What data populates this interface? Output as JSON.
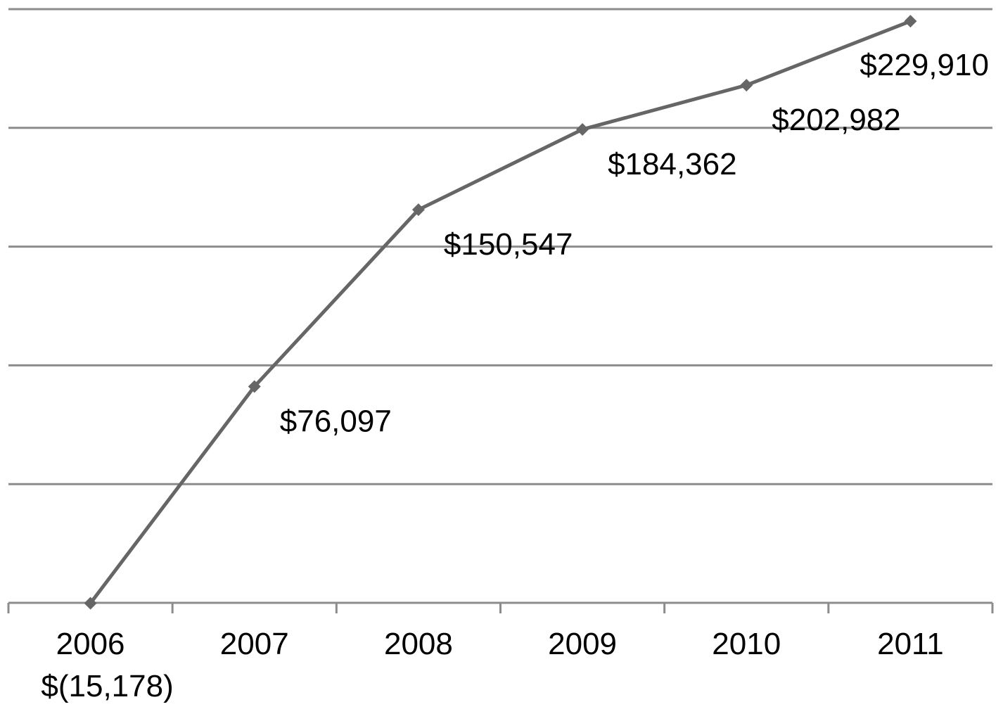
{
  "chart_data": {
    "type": "line",
    "title": "",
    "xlabel": "",
    "ylabel": "",
    "categories": [
      "2006",
      "2007",
      "2008",
      "2009",
      "2010",
      "2011"
    ],
    "series": [
      {
        "values": [
          -15178,
          76097,
          150547,
          184362,
          202982,
          229910
        ],
        "data_labels": [
          "$(15,178)",
          "$76,097",
          "$150,547",
          "$184,362",
          "$202,982",
          "$229,910"
        ],
        "color": "#666666"
      }
    ],
    "ylim": [
      -15000,
      235000
    ],
    "grid": true,
    "legend": "none"
  }
}
